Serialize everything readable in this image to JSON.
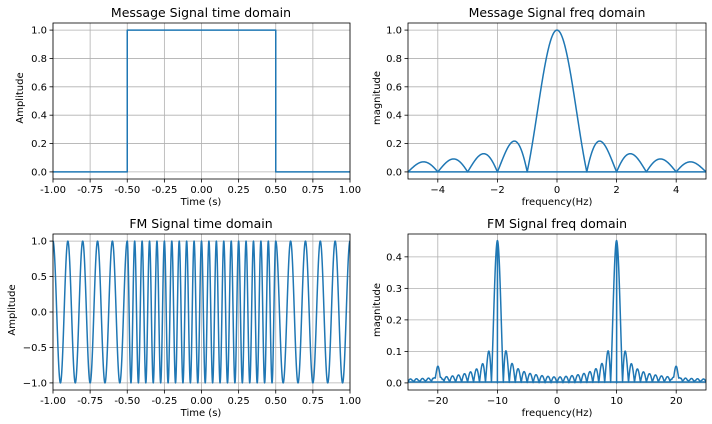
{
  "colors": {
    "line": "#1f77b4",
    "grid": "#b0b0b0",
    "background": "#ffffff"
  },
  "chart_data": [
    {
      "type": "line",
      "title": "Message Signal time domain",
      "xlabel": "Time (s)",
      "ylabel": "Amplitude",
      "xlim": [
        -1.0,
        1.0
      ],
      "ylim": [
        -0.05,
        1.05
      ],
      "grid": true,
      "xticks": [
        "-1.00",
        "-0.75",
        "-0.50",
        "-0.25",
        "0.00",
        "0.25",
        "0.50",
        "0.75",
        "1.00"
      ],
      "yticks": [
        "0.0",
        "0.2",
        "0.4",
        "0.6",
        "0.8",
        "1.0"
      ],
      "signal": "rectangular pulse",
      "series": [
        {
          "x": [
            -1.0,
            -0.5,
            -0.5,
            0.5,
            0.5,
            1.0
          ],
          "y": [
            0,
            0,
            1,
            1,
            0,
            0
          ]
        }
      ]
    },
    {
      "type": "line",
      "title": "Message Signal freq domain",
      "xlabel": "frequency(Hz)",
      "ylabel": "magnitude",
      "xlim": [
        -5,
        5
      ],
      "ylim": [
        -0.05,
        1.05
      ],
      "grid": true,
      "xticks": [
        "−4",
        "−2",
        "0",
        "2",
        "4"
      ],
      "yticks": [
        "0.0",
        "0.2",
        "0.4",
        "0.6",
        "0.8",
        "1.0"
      ],
      "signal": "|sinc(f)| magnitude spectrum of pulse, peak 1.0 at 0 Hz, nulls at integer Hz",
      "peak": 1.0,
      "first_sidelobe": 0.21
    },
    {
      "type": "line",
      "title": "FM Signal time domain",
      "xlabel": "Time (s)",
      "ylabel": "Amplitude",
      "xlim": [
        -1.0,
        1.0
      ],
      "ylim": [
        -1.1,
        1.1
      ],
      "grid": true,
      "xticks": [
        "-1.00",
        "-0.75",
        "-0.50",
        "-0.25",
        "0.00",
        "0.25",
        "0.50",
        "0.75",
        "1.00"
      ],
      "yticks": [
        "−1.0",
        "−0.5",
        "0.0",
        "0.5",
        "1.0"
      ],
      "signal": "cos wave: 10 Hz outside pulse, 20 Hz inside |t|<0.5",
      "carrier_hz": 10,
      "deviated_hz": 20
    },
    {
      "type": "line",
      "title": "FM Signal freq domain",
      "xlabel": "frequency(Hz)",
      "ylabel": "magnitude",
      "xlim": [
        -25,
        25
      ],
      "ylim": [
        -0.0225,
        0.4725
      ],
      "grid": true,
      "xticks": [
        "−20",
        "−10",
        "0",
        "10",
        "20"
      ],
      "yticks": [
        "0.0",
        "0.1",
        "0.2",
        "0.3",
        "0.4"
      ],
      "peaks": [
        {
          "f": -20,
          "magnitude": 0.05
        },
        {
          "f": -10,
          "magnitude": 0.45
        },
        {
          "f": 10,
          "magnitude": 0.45
        },
        {
          "f": 20,
          "magnitude": 0.05
        }
      ]
    }
  ]
}
